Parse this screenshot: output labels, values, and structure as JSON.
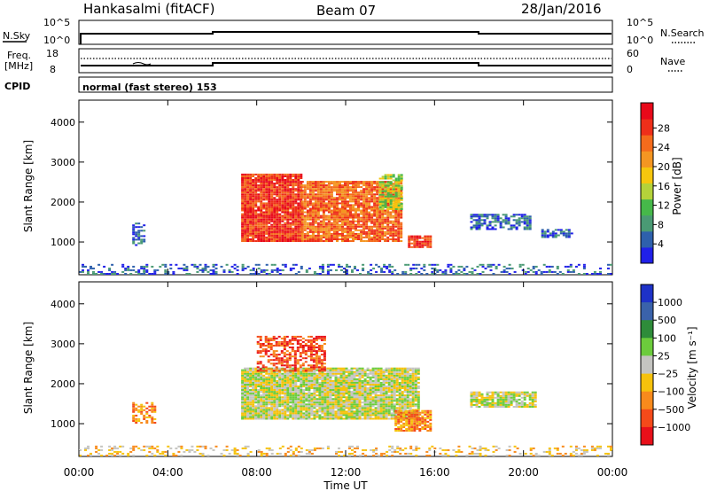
{
  "header": {
    "station": "Hankasalmi (fitACF)",
    "beam": "Beam 07",
    "date": "28/Jan/2016"
  },
  "top_panels": {
    "nsky_label": "N.Sky",
    "nsky_ticks": [
      "10^5",
      "10^0"
    ],
    "nsearch_label": "N.Search",
    "nsearch_ticks": [
      "10^5",
      "10^0"
    ],
    "freq_label_1": "Freq.",
    "freq_label_2": "[MHz]",
    "freq_ticks": [
      "18",
      "8"
    ],
    "nave_label": "Nave",
    "nave_ticks": [
      "60",
      "0"
    ],
    "cpid_label": "CPID",
    "cpid_text": "normal (fast stereo) 153"
  },
  "chart_data": [
    {
      "type": "heatmap",
      "name": "power",
      "ylabel": "Slant Range [km]",
      "y_ticks": [
        "1000",
        "2000",
        "3000",
        "4000"
      ],
      "ylim": [
        180,
        4550
      ],
      "xlim": [
        0,
        24
      ],
      "colorbar": {
        "label": "Power [dB]",
        "ticks": [
          "4",
          "8",
          "12",
          "16",
          "20",
          "24",
          "28"
        ],
        "colors": [
          "#2020e8",
          "#2e60ac",
          "#4a9a74",
          "#46b84a",
          "#b4d23a",
          "#f6c60e",
          "#f49622",
          "#f46b1c",
          "#ee2f1a",
          "#e8091a"
        ]
      },
      "regions": [
        {
          "x": [
            0.0,
            24.0
          ],
          "y": [
            180,
            420
          ],
          "level": 1,
          "density": 0.35
        },
        {
          "x": [
            2.4,
            3.0
          ],
          "y": [
            900,
            1500
          ],
          "level": 1,
          "density": 0.5
        },
        {
          "x": [
            7.3,
            10.0
          ],
          "y": [
            1000,
            2700
          ],
          "level": 8,
          "density": 0.95
        },
        {
          "x": [
            10.0,
            14.5
          ],
          "y": [
            1000,
            2500
          ],
          "level": 7,
          "density": 0.9
        },
        {
          "x": [
            13.5,
            14.5
          ],
          "y": [
            1800,
            2700
          ],
          "level": 4,
          "density": 0.8
        },
        {
          "x": [
            14.8,
            15.8
          ],
          "y": [
            850,
            1150
          ],
          "level": 8,
          "density": 0.9
        },
        {
          "x": [
            17.6,
            20.3
          ],
          "y": [
            1300,
            1700
          ],
          "level": 1,
          "density": 0.7
        },
        {
          "x": [
            20.8,
            22.2
          ],
          "y": [
            1100,
            1300
          ],
          "level": 1,
          "density": 0.6
        }
      ]
    },
    {
      "type": "heatmap",
      "name": "velocity",
      "ylabel": "Slant Range [km]",
      "y_ticks": [
        "1000",
        "2000",
        "3000",
        "4000"
      ],
      "ylim": [
        180,
        4550
      ],
      "xlim": [
        0,
        24
      ],
      "x_ticks": [
        "00:00",
        "04:00",
        "08:00",
        "12:00",
        "16:00",
        "20:00",
        "00:00"
      ],
      "xlabel": "Time UT",
      "colorbar": {
        "label": "Velocity [m s⁻¹]",
        "ticks": [
          "1000",
          "500",
          "100",
          "25",
          "−25",
          "−100",
          "−500",
          "−1000"
        ],
        "colors": [
          "#1e32c8",
          "#3a62aa",
          "#2e8c3a",
          "#6ccc3c",
          "#c4c4c0",
          "#f6c20c",
          "#f88a1c",
          "#f44a1a",
          "#e8101a"
        ]
      },
      "regions": [
        {
          "x": [
            0.0,
            24.0
          ],
          "y": [
            180,
            420
          ],
          "level": 5,
          "density": 0.3
        },
        {
          "x": [
            2.4,
            3.4
          ],
          "y": [
            1000,
            1500
          ],
          "level": 6,
          "density": 0.5
        },
        {
          "x": [
            7.3,
            15.3
          ],
          "y": [
            1100,
            2400
          ],
          "level": 4,
          "density": 0.95
        },
        {
          "x": [
            8.0,
            11.0
          ],
          "y": [
            2300,
            3200
          ],
          "level": 7,
          "density": 0.6
        },
        {
          "x": [
            14.2,
            15.8
          ],
          "y": [
            800,
            1300
          ],
          "level": 6,
          "density": 0.9
        },
        {
          "x": [
            17.6,
            20.5
          ],
          "y": [
            1400,
            1800
          ],
          "level": 4,
          "density": 0.85
        }
      ]
    }
  ]
}
